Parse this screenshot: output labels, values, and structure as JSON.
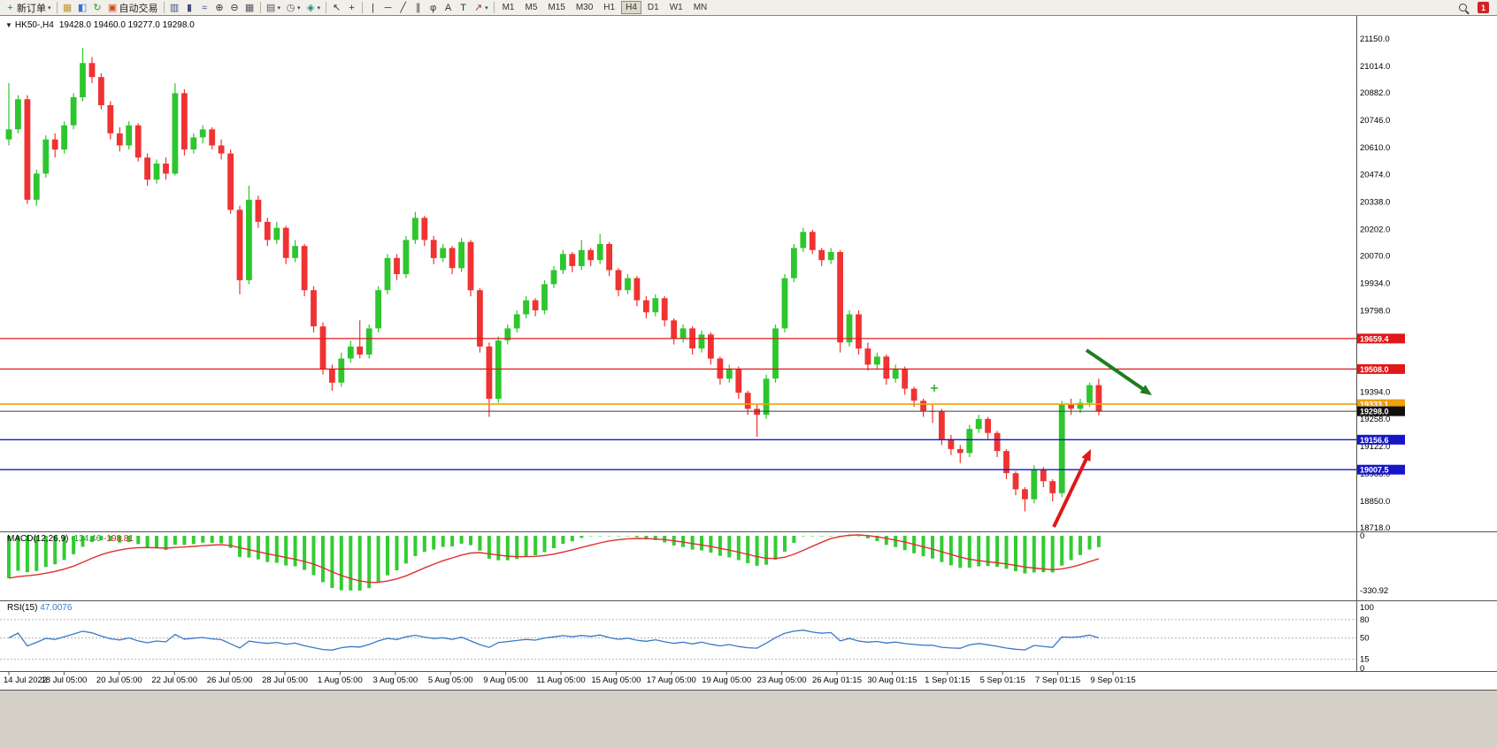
{
  "toolbar": {
    "items": [
      {
        "type": "button",
        "name": "new-order-button",
        "icon": "new-order-icon",
        "glyph": "+",
        "color": "#1a941a",
        "label": "新订单",
        "dropdown": true
      },
      {
        "type": "sep"
      },
      {
        "type": "button",
        "name": "charts-button",
        "icon": "chart-window-icon",
        "glyph": "▦",
        "color": "#bf9726"
      },
      {
        "type": "button",
        "name": "market-watch-button",
        "icon": "market-watch-icon",
        "glyph": "◧",
        "color": "#3a6fd0"
      },
      {
        "type": "button",
        "name": "refresh-button",
        "icon": "refresh-icon",
        "glyph": "↻",
        "color": "#2f9e2f"
      },
      {
        "type": "button",
        "name": "autotrade-button",
        "icon": "autotrade-icon",
        "glyph": "▣",
        "color": "#d24a1e",
        "label": "自动交易"
      },
      {
        "type": "sep"
      },
      {
        "type": "button",
        "name": "bar-chart-button",
        "icon": "bar-chart-icon",
        "glyph": "▥",
        "color": "#44507a"
      },
      {
        "type": "button",
        "name": "candlestick-chart-button",
        "icon": "candlestick-chart-icon",
        "glyph": "▮",
        "color": "#44507a"
      },
      {
        "type": "button",
        "name": "line-chart-button",
        "icon": "line-chart-icon",
        "glyph": "≈",
        "color": "#44507a"
      },
      {
        "type": "button",
        "name": "zoom-in-button",
        "icon": "zoom-in-icon",
        "glyph": "⊕",
        "color": "#333333"
      },
      {
        "type": "button",
        "name": "zoom-out-button",
        "icon": "zoom-out-icon",
        "glyph": "⊖",
        "color": "#333333"
      },
      {
        "type": "button",
        "name": "tile-windows-button",
        "icon": "tile-windows-icon",
        "glyph": "▦",
        "color": "#555566"
      },
      {
        "type": "sep"
      },
      {
        "type": "button",
        "name": "new-chart-button",
        "icon": "new-chart-icon",
        "glyph": "▤",
        "color": "#555566",
        "dropdown": true
      },
      {
        "type": "button",
        "name": "profiles-button",
        "icon": "clock-icon",
        "glyph": "◷",
        "color": "#555566",
        "dropdown": true
      },
      {
        "type": "button",
        "name": "indicators-button",
        "icon": "indicators-icon",
        "glyph": "◈",
        "color": "#22897a",
        "dropdown": true
      },
      {
        "type": "sep"
      },
      {
        "type": "button",
        "name": "cursor-button",
        "icon": "cursor-icon",
        "glyph": "↖",
        "color": "#333333"
      },
      {
        "type": "button",
        "name": "crosshair-button",
        "icon": "crosshair-icon",
        "glyph": "+",
        "color": "#333333"
      },
      {
        "type": "sep"
      },
      {
        "type": "button",
        "name": "vertical-line-button",
        "icon": "vertical-line-icon",
        "glyph": "|",
        "color": "#333333"
      },
      {
        "type": "button",
        "name": "horizontal-line-button",
        "icon": "horizontal-line-icon",
        "glyph": "─",
        "color": "#333333"
      },
      {
        "type": "button",
        "name": "trendline-button",
        "icon": "trendline-icon",
        "glyph": "╱",
        "color": "#333333"
      },
      {
        "type": "button",
        "name": "channel-button",
        "icon": "channel-icon",
        "glyph": "∥",
        "color": "#333333"
      },
      {
        "type": "button",
        "name": "fibonacci-button",
        "icon": "fibonacci-icon",
        "glyph": "φ",
        "color": "#333333"
      },
      {
        "type": "button",
        "name": "text-button",
        "icon": "text-icon",
        "glyph": "A",
        "color": "#333333"
      },
      {
        "type": "button",
        "name": "label-button",
        "icon": "text-label-icon",
        "glyph": "T",
        "color": "#333333"
      },
      {
        "type": "button",
        "name": "arrows-button",
        "icon": "arrow-objects-icon",
        "glyph": "↗",
        "color": "#a03030",
        "dropdown": true
      },
      {
        "type": "sep"
      },
      {
        "type": "tf",
        "label": "M1"
      },
      {
        "type": "tf",
        "label": "M5"
      },
      {
        "type": "tf",
        "label": "M15"
      },
      {
        "type": "tf",
        "label": "M30"
      },
      {
        "type": "tf",
        "label": "H1"
      },
      {
        "type": "tf",
        "label": "H4",
        "active": true
      },
      {
        "type": "tf",
        "label": "D1"
      },
      {
        "type": "tf",
        "label": "W1"
      },
      {
        "type": "tf",
        "label": "MN"
      },
      {
        "type": "spacer"
      },
      {
        "type": "button",
        "name": "search-button",
        "icon": "search-icon",
        "mag": true
      },
      {
        "type": "badge",
        "name": "notification-badge",
        "text": "1"
      }
    ]
  },
  "chart": {
    "collapse_icon": "▼",
    "symbol_label": "HK50-,H4",
    "ohlc_text": "19428.0 19460.0 19277.0 19298.0"
  },
  "chart_data": {
    "type": "candlestick",
    "symbol": "HK50-",
    "timeframe": "H4",
    "last_bar": {
      "open": 19428.0,
      "high": 19460.0,
      "low": 19277.0,
      "close": 19298.0
    },
    "colors": {
      "bull": "#2ec62e",
      "bear": "#f03232"
    },
    "price_axis": {
      "max": 21150.0,
      "min": 18718.0,
      "ticks": [
        21150,
        21014,
        20882,
        20746,
        20610,
        20474,
        20338,
        20202,
        20070,
        19934,
        19798,
        19394,
        19258,
        19122,
        18986,
        18850,
        18718
      ]
    },
    "horizontal_lines": [
      {
        "value": 19659.4,
        "color": "#e01818",
        "width": 1.2,
        "badge": true
      },
      {
        "value": 19508.0,
        "color": "#e01818",
        "width": 1.2,
        "badge": true
      },
      {
        "value": 19333.1,
        "color": "#efa00b",
        "width": 1.6,
        "badge": true
      },
      {
        "value": 19298.0,
        "color": "#3c3c3c",
        "width": 1.0,
        "badge": true,
        "badge_color": "#101010"
      },
      {
        "value": 19156.6,
        "color": "#1616c8",
        "width": 1.4,
        "badge": true
      },
      {
        "value": 19007.5,
        "color": "#1616c8",
        "width": 1.4,
        "badge": true
      }
    ],
    "time_labels": [
      "14 Jul 2022",
      "18 Jul 05:00",
      "20 Jul 05:00",
      "22 Jul 05:00",
      "26 Jul 05:00",
      "28 Jul 05:00",
      "1 Aug 05:00",
      "3 Aug 05:00",
      "5 Aug 05:00",
      "9 Aug 05:00",
      "11 Aug 05:00",
      "15 Aug 05:00",
      "17 Aug 05:00",
      "19 Aug 05:00",
      "23 Aug 05:00",
      "26 Aug 01:15",
      "30 Aug 01:15",
      "1 Sep 01:15",
      "5 Sep 01:15",
      "7 Sep 01:15",
      "9 Sep 01:15"
    ],
    "candles": [
      [
        20650,
        20930,
        20620,
        20700
      ],
      [
        20700,
        20870,
        20680,
        20850
      ],
      [
        20850,
        20870,
        20330,
        20350
      ],
      [
        20350,
        20500,
        20320,
        20480
      ],
      [
        20480,
        20670,
        20460,
        20650
      ],
      [
        20650,
        20680,
        20560,
        20600
      ],
      [
        20600,
        20740,
        20580,
        20720
      ],
      [
        20720,
        20880,
        20700,
        20860
      ],
      [
        20860,
        21105,
        20840,
        21030
      ],
      [
        21030,
        21060,
        20930,
        20960
      ],
      [
        20960,
        20980,
        20800,
        20820
      ],
      [
        20820,
        20840,
        20650,
        20680
      ],
      [
        20680,
        20710,
        20590,
        20620
      ],
      [
        20620,
        20740,
        20600,
        20720
      ],
      [
        20720,
        20730,
        20540,
        20560
      ],
      [
        20560,
        20580,
        20420,
        20450
      ],
      [
        20450,
        20550,
        20430,
        20530
      ],
      [
        20530,
        20560,
        20450,
        20480
      ],
      [
        20480,
        20930,
        20470,
        20880
      ],
      [
        20880,
        20900,
        20570,
        20600
      ],
      [
        20600,
        20680,
        20580,
        20660
      ],
      [
        20660,
        20720,
        20630,
        20700
      ],
      [
        20700,
        20710,
        20600,
        20620
      ],
      [
        20620,
        20650,
        20550,
        20580
      ],
      [
        20580,
        20600,
        20280,
        20300
      ],
      [
        20300,
        20320,
        19880,
        19950
      ],
      [
        19950,
        20420,
        19930,
        20350
      ],
      [
        20350,
        20370,
        20210,
        20240
      ],
      [
        20240,
        20260,
        20120,
        20150
      ],
      [
        20150,
        20240,
        20130,
        20210
      ],
      [
        20210,
        20220,
        20030,
        20060
      ],
      [
        20060,
        20150,
        20040,
        20120
      ],
      [
        20120,
        20130,
        19870,
        19900
      ],
      [
        19900,
        19920,
        19690,
        19720
      ],
      [
        19720,
        19740,
        19480,
        19510
      ],
      [
        19510,
        19530,
        19400,
        19440
      ],
      [
        19440,
        19590,
        19420,
        19560
      ],
      [
        19560,
        19650,
        19540,
        19620
      ],
      [
        19620,
        19750,
        19560,
        19580
      ],
      [
        19580,
        19730,
        19560,
        19710
      ],
      [
        19710,
        19920,
        19690,
        19900
      ],
      [
        19900,
        20080,
        19880,
        20060
      ],
      [
        20060,
        20080,
        19950,
        19980
      ],
      [
        19980,
        20170,
        19960,
        20150
      ],
      [
        20150,
        20290,
        20130,
        20260
      ],
      [
        20260,
        20270,
        20120,
        20150
      ],
      [
        20150,
        20170,
        20030,
        20060
      ],
      [
        20060,
        20130,
        20040,
        20110
      ],
      [
        20110,
        20120,
        19980,
        20010
      ],
      [
        20010,
        20160,
        19990,
        20140
      ],
      [
        20140,
        20150,
        19870,
        19900
      ],
      [
        19900,
        19910,
        19590,
        19620
      ],
      [
        19620,
        19640,
        19270,
        19360
      ],
      [
        19360,
        19670,
        19340,
        19650
      ],
      [
        19650,
        19730,
        19630,
        19710
      ],
      [
        19710,
        19800,
        19690,
        19780
      ],
      [
        19780,
        19870,
        19760,
        19850
      ],
      [
        19850,
        19860,
        19770,
        19800
      ],
      [
        19800,
        19950,
        19780,
        19930
      ],
      [
        19930,
        20020,
        19910,
        20000
      ],
      [
        20000,
        20100,
        19980,
        20080
      ],
      [
        20080,
        20090,
        19990,
        20020
      ],
      [
        20020,
        20150,
        20000,
        20100
      ],
      [
        20100,
        20110,
        20020,
        20050
      ],
      [
        20050,
        20180,
        20030,
        20130
      ],
      [
        20130,
        20140,
        19970,
        20000
      ],
      [
        20000,
        20010,
        19870,
        19900
      ],
      [
        19900,
        19980,
        19880,
        19960
      ],
      [
        19960,
        19970,
        19820,
        19850
      ],
      [
        19850,
        19870,
        19760,
        19790
      ],
      [
        19790,
        19880,
        19770,
        19860
      ],
      [
        19860,
        19870,
        19720,
        19750
      ],
      [
        19750,
        19760,
        19630,
        19660
      ],
      [
        19660,
        19730,
        19640,
        19710
      ],
      [
        19710,
        19720,
        19580,
        19610
      ],
      [
        19610,
        19700,
        19590,
        19680
      ],
      [
        19680,
        19690,
        19530,
        19560
      ],
      [
        19560,
        19570,
        19430,
        19460
      ],
      [
        19460,
        19530,
        19440,
        19510
      ],
      [
        19510,
        19520,
        19360,
        19390
      ],
      [
        19390,
        19400,
        19280,
        19310
      ],
      [
        19310,
        19330,
        19170,
        19280
      ],
      [
        19280,
        19480,
        19260,
        19460
      ],
      [
        19460,
        19730,
        19440,
        19710
      ],
      [
        19710,
        19980,
        19690,
        19960
      ],
      [
        19960,
        20130,
        19940,
        20110
      ],
      [
        20110,
        20210,
        20090,
        20190
      ],
      [
        20190,
        20200,
        20080,
        20100
      ],
      [
        20100,
        20110,
        20020,
        20050
      ],
      [
        20050,
        20110,
        20030,
        20090
      ],
      [
        20090,
        20100,
        19590,
        19640
      ],
      [
        19640,
        19800,
        19620,
        19780
      ],
      [
        19780,
        19800,
        19580,
        19610
      ],
      [
        19610,
        19640,
        19500,
        19530
      ],
      [
        19530,
        19590,
        19510,
        19570
      ],
      [
        19570,
        19580,
        19430,
        19460
      ],
      [
        19460,
        19530,
        19440,
        19510
      ],
      [
        19510,
        19520,
        19380,
        19410
      ],
      [
        19410,
        19420,
        19320,
        19350
      ],
      [
        19350,
        19360,
        19270,
        19300
      ],
      [
        19300,
        19330,
        19240,
        19296
      ],
      [
        19296,
        19310,
        19130,
        19160
      ],
      [
        19160,
        19180,
        19080,
        19110
      ],
      [
        19110,
        19130,
        19040,
        19090
      ],
      [
        19090,
        19230,
        19070,
        19210
      ],
      [
        19210,
        19280,
        19190,
        19260
      ],
      [
        19260,
        19270,
        19160,
        19190
      ],
      [
        19190,
        19200,
        19070,
        19100
      ],
      [
        19100,
        19110,
        18960,
        18990
      ],
      [
        18990,
        19000,
        18880,
        18910
      ],
      [
        18910,
        18920,
        18800,
        18860
      ],
      [
        18860,
        19030,
        18840,
        19010
      ],
      [
        19010,
        19020,
        18920,
        18950
      ],
      [
        18950,
        18960,
        18850,
        18890
      ],
      [
        18890,
        19350,
        18870,
        19330
      ],
      [
        19330,
        19360,
        19280,
        19310
      ],
      [
        19310,
        19360,
        19290,
        19340
      ],
      [
        19340,
        19440,
        19320,
        19428
      ],
      [
        19428,
        19460,
        19277,
        19298
      ]
    ],
    "macd": {
      "label": "MACD(12,26,9)",
      "fast": 12,
      "slow": 26,
      "signal": 9,
      "main_value_str": "-134.46",
      "signal_value_str": "-198.81",
      "axis_max_label": "0",
      "axis_min_label": "-330.92",
      "axis_min": -330.92,
      "histogram_color": "#33cc33",
      "signal_color": "#e03030"
    },
    "rsi": {
      "label": "RSI(15)",
      "period": 15,
      "value_str": "47.0076",
      "axis_ticks": [
        100,
        80,
        50,
        15,
        0
      ],
      "levels": [
        80,
        50,
        15
      ],
      "line_color": "#3a78c8"
    },
    "annotations": [
      {
        "type": "arrow",
        "color": "#1e7d1e",
        "from": [
          1228,
          396
        ],
        "to": [
          1302,
          447
        ]
      },
      {
        "type": "arrow",
        "color": "#e01818",
        "from": [
          1191,
          596
        ],
        "to": [
          1233,
          508
        ]
      },
      {
        "type": "cross",
        "color": "#22aa22",
        "at": [
          1056,
          439
        ]
      }
    ]
  }
}
